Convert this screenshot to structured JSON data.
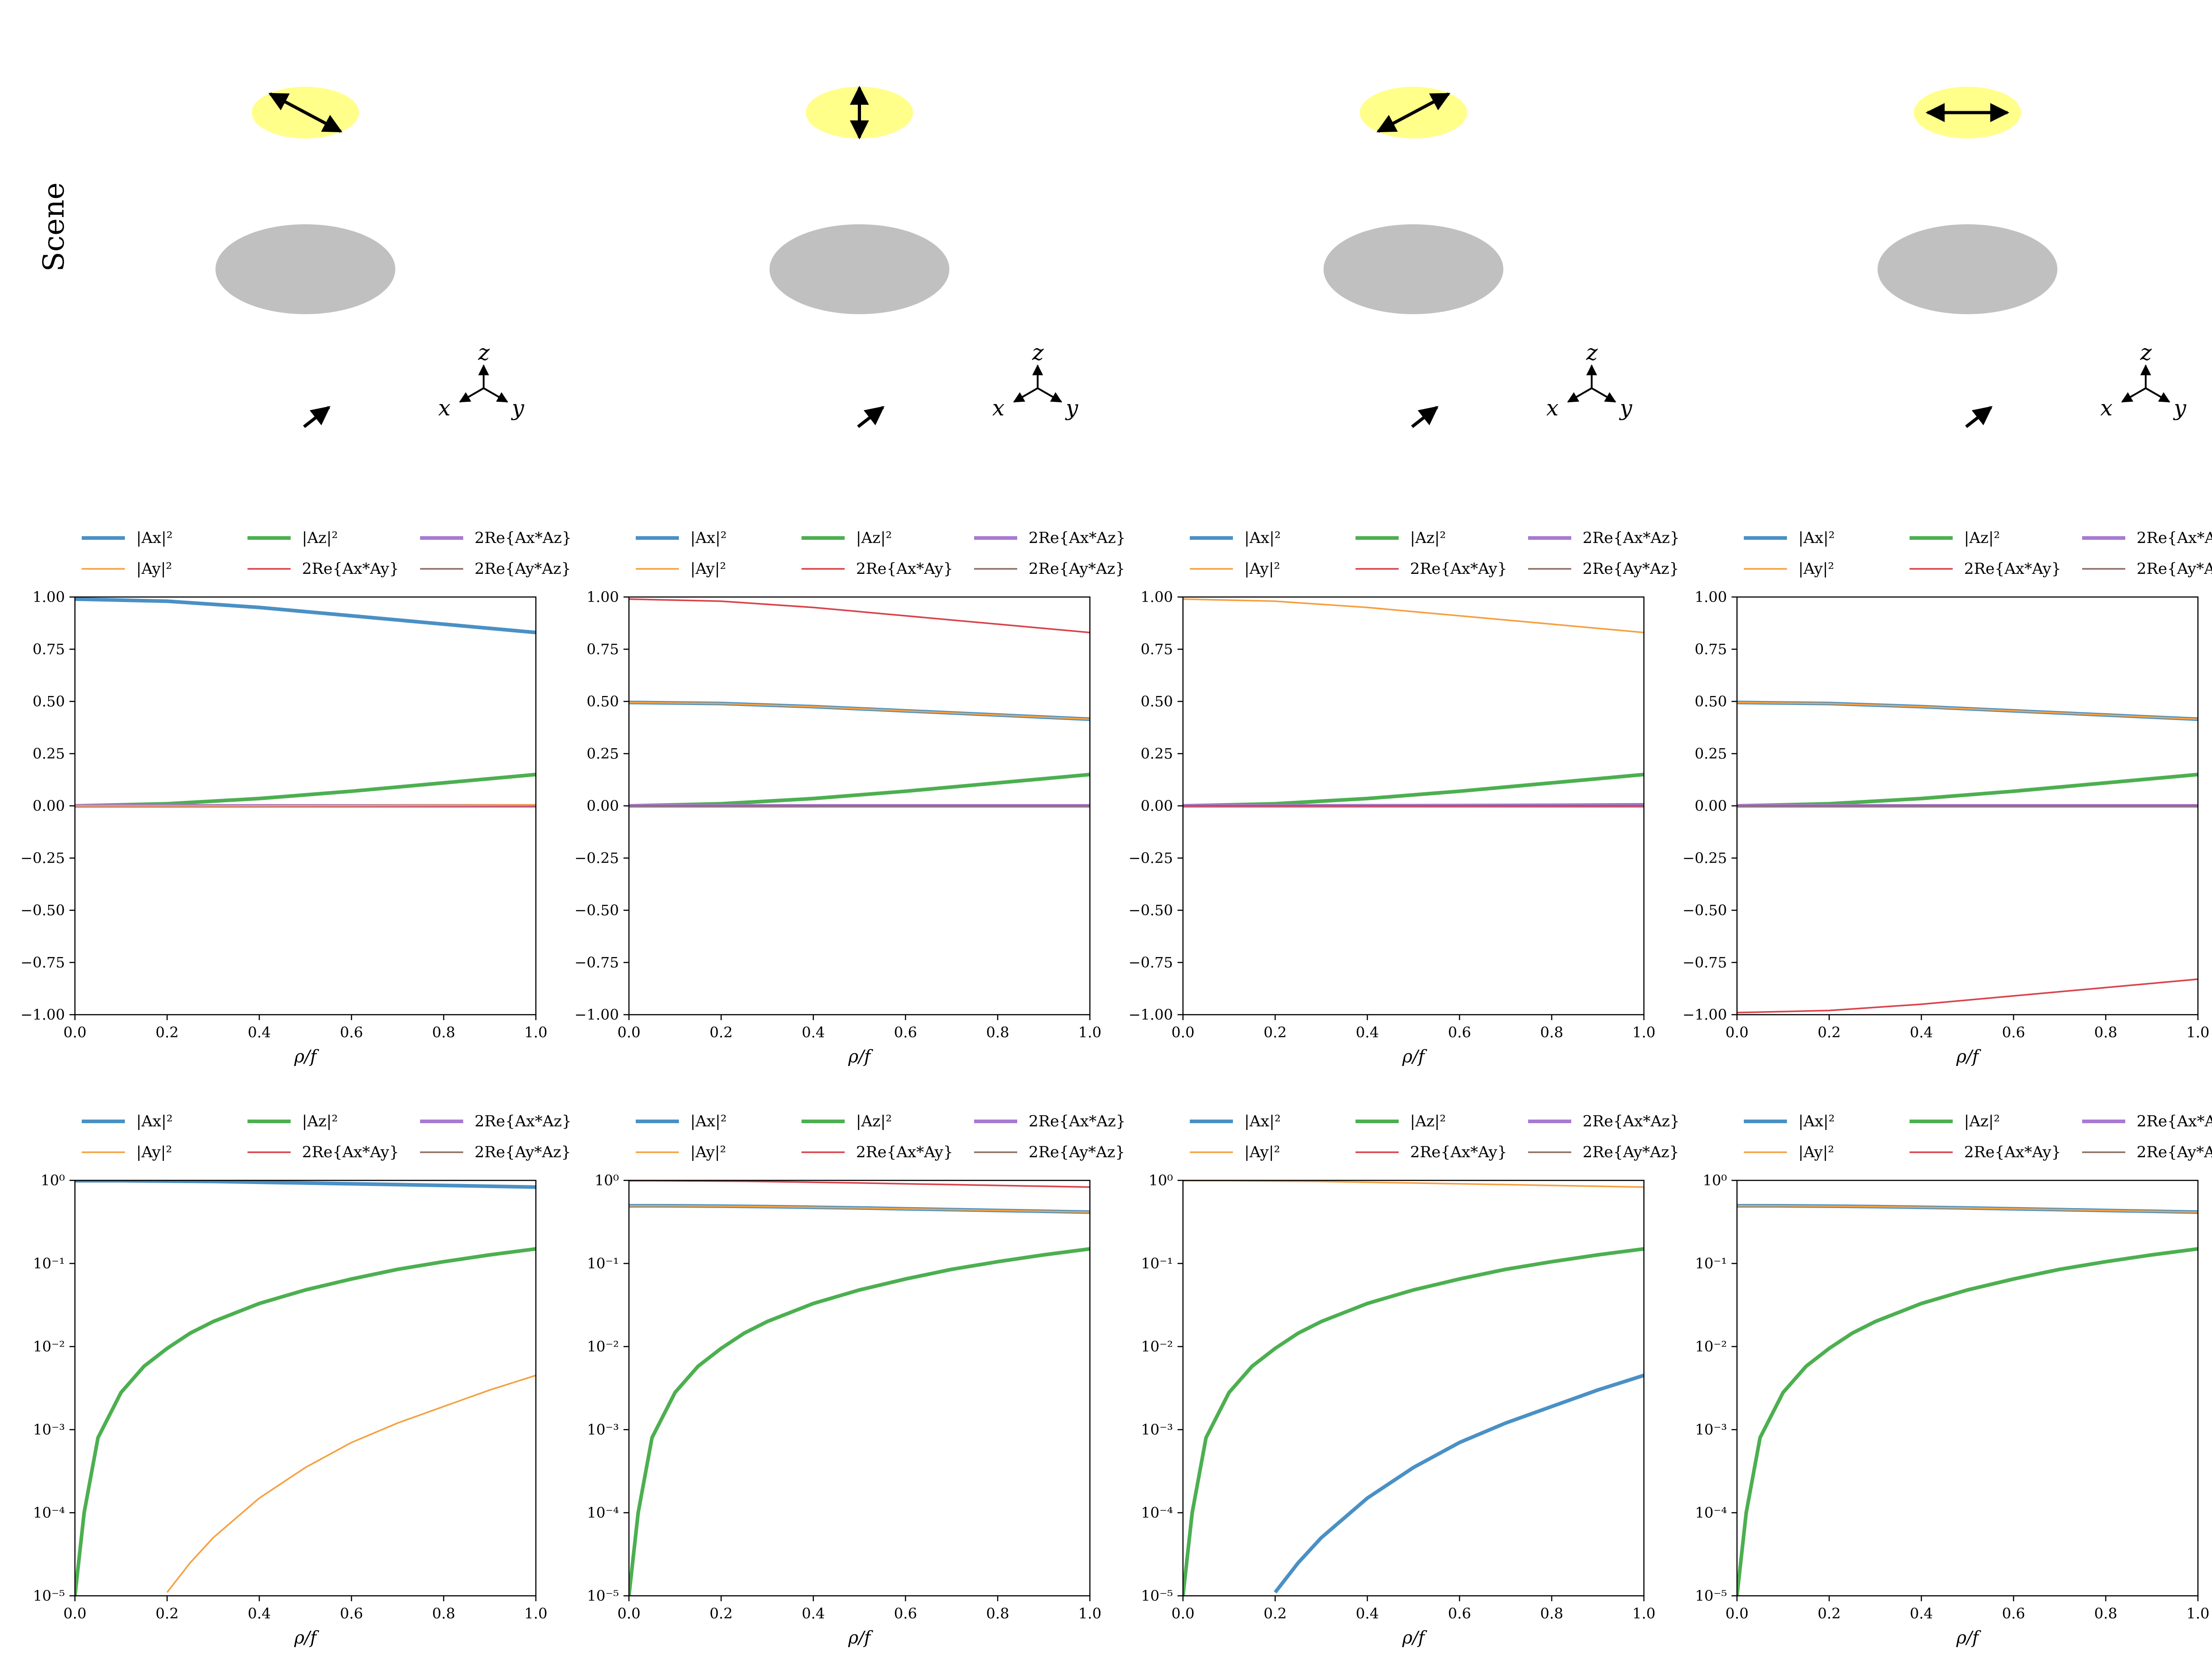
{
  "figure": {
    "row_label": "Scene",
    "colors": {
      "Ax2": "#4a90c4",
      "Ay2": "#f5a040",
      "Az2": "#4caf50",
      "ReAxAy": "#d9424a",
      "ReAxAz": "#a77ad1",
      "ReAyAz": "#8e6e62",
      "source": "#ffff8a",
      "lens": "#c0c0c0"
    },
    "legend": [
      {
        "key": "Ax2",
        "label": "|Ax|²",
        "thick": true
      },
      {
        "key": "Az2",
        "label": "|Az|²",
        "thick": true
      },
      {
        "key": "ReAxAz",
        "label": "2Re{Ax*Az}",
        "thick": true
      },
      {
        "key": "Ay2",
        "label": "|Ay|²",
        "thick": false
      },
      {
        "key": "ReAxAy",
        "label": "2Re{Ax*Ay}",
        "thick": false
      },
      {
        "key": "ReAyAz",
        "label": "2Re{Ay*Az}",
        "thick": false
      }
    ],
    "triad_labels": {
      "x": "x",
      "y": "y",
      "z": "z"
    },
    "scenes": [
      {
        "polarization": "diagonal-positive"
      },
      {
        "polarization": "vertical"
      },
      {
        "polarization": "diagonal-negative"
      },
      {
        "polarization": "horizontal"
      }
    ]
  },
  "chart_data": [
    {
      "type": "line",
      "row": "linear",
      "panel": 1,
      "xlabel": "ρ/f",
      "xlim": [
        0,
        1
      ],
      "ylim": [
        -1,
        1
      ],
      "xticks": [
        "0.0",
        "0.2",
        "0.4",
        "0.6",
        "0.8",
        "1.0"
      ],
      "yticks": [
        "1.00",
        "0.75",
        "0.50",
        "0.25",
        "0.00",
        "−0.25",
        "−0.50",
        "−0.75",
        "−1.00"
      ],
      "x": [
        0,
        0.2,
        0.4,
        0.6,
        0.8,
        1.0
      ],
      "series": [
        {
          "name": "|Ax|²",
          "key": "Ax2",
          "values": [
            0.99,
            0.98,
            0.95,
            0.91,
            0.87,
            0.83
          ]
        },
        {
          "name": "|Ay|²",
          "key": "Ay2",
          "values": [
            0,
            0.0001,
            0.0004,
            0.0013,
            0.0026,
            0.0045
          ]
        },
        {
          "name": "|Az|²",
          "key": "Az2",
          "values": [
            0,
            0.01,
            0.035,
            0.07,
            0.11,
            0.15
          ]
        },
        {
          "name": "2Re{Ax*Ay}",
          "key": "ReAxAy",
          "values": [
            0,
            0,
            0,
            0,
            0,
            0
          ]
        },
        {
          "name": "2Re{Ax*Az}",
          "key": "ReAxAz",
          "values": [
            0,
            0,
            0,
            0,
            0,
            0
          ]
        },
        {
          "name": "2Re{Ay*Az}",
          "key": "ReAyAz",
          "values": [
            0,
            0,
            0,
            0,
            0,
            0
          ]
        }
      ]
    },
    {
      "type": "line",
      "row": "linear",
      "panel": 2,
      "xlabel": "ρ/f",
      "xlim": [
        0,
        1
      ],
      "ylim": [
        -1,
        1
      ],
      "xticks": [
        "0.0",
        "0.2",
        "0.4",
        "0.6",
        "0.8",
        "1.0"
      ],
      "yticks": [
        "1.00",
        "0.75",
        "0.50",
        "0.25",
        "0.00",
        "−0.25",
        "−0.50",
        "−0.75",
        "−1.00"
      ],
      "x": [
        0,
        0.2,
        0.4,
        0.6,
        0.8,
        1.0
      ],
      "series": [
        {
          "name": "|Ax|²",
          "key": "Ax2",
          "values": [
            0.495,
            0.49,
            0.475,
            0.455,
            0.435,
            0.415
          ]
        },
        {
          "name": "|Ay|²",
          "key": "Ay2",
          "values": [
            0.495,
            0.49,
            0.475,
            0.455,
            0.435,
            0.415
          ]
        },
        {
          "name": "|Az|²",
          "key": "Az2",
          "values": [
            0,
            0.01,
            0.035,
            0.07,
            0.11,
            0.15
          ]
        },
        {
          "name": "2Re{Ax*Ay}",
          "key": "ReAxAy",
          "values": [
            0.99,
            0.98,
            0.95,
            0.91,
            0.87,
            0.83
          ]
        },
        {
          "name": "2Re{Ax*Az}",
          "key": "ReAxAz",
          "values": [
            0,
            0,
            0,
            0,
            0,
            0
          ]
        },
        {
          "name": "2Re{Ay*Az}",
          "key": "ReAyAz",
          "values": [
            0,
            0,
            0,
            0,
            0,
            0
          ]
        }
      ]
    },
    {
      "type": "line",
      "row": "linear",
      "panel": 3,
      "xlabel": "ρ/f",
      "xlim": [
        0,
        1
      ],
      "ylim": [
        -1,
        1
      ],
      "xticks": [
        "0.0",
        "0.2",
        "0.4",
        "0.6",
        "0.8",
        "1.0"
      ],
      "yticks": [
        "1.00",
        "0.75",
        "0.50",
        "0.25",
        "0.00",
        "−0.25",
        "−0.50",
        "−0.75",
        "−1.00"
      ],
      "x": [
        0,
        0.2,
        0.4,
        0.6,
        0.8,
        1.0
      ],
      "series": [
        {
          "name": "|Ax|²",
          "key": "Ax2",
          "values": [
            0,
            0.0001,
            0.0004,
            0.0013,
            0.0026,
            0.0045
          ]
        },
        {
          "name": "|Ay|²",
          "key": "Ay2",
          "values": [
            0.99,
            0.98,
            0.95,
            0.91,
            0.87,
            0.83
          ]
        },
        {
          "name": "|Az|²",
          "key": "Az2",
          "values": [
            0,
            0.01,
            0.035,
            0.07,
            0.11,
            0.15
          ]
        },
        {
          "name": "2Re{Ax*Ay}",
          "key": "ReAxAy",
          "values": [
            0,
            0,
            0,
            0,
            0,
            0
          ]
        },
        {
          "name": "2Re{Ax*Az}",
          "key": "ReAxAz",
          "values": [
            0,
            0,
            0,
            0,
            0,
            0
          ]
        },
        {
          "name": "2Re{Ay*Az}",
          "key": "ReAyAz",
          "values": [
            0,
            0,
            0,
            0,
            0,
            0
          ]
        }
      ]
    },
    {
      "type": "line",
      "row": "linear",
      "panel": 4,
      "xlabel": "ρ/f",
      "xlim": [
        0,
        1
      ],
      "ylim": [
        -1,
        1
      ],
      "xticks": [
        "0.0",
        "0.2",
        "0.4",
        "0.6",
        "0.8",
        "1.0"
      ],
      "yticks": [
        "1.00",
        "0.75",
        "0.50",
        "0.25",
        "0.00",
        "−0.25",
        "−0.50",
        "−0.75",
        "−1.00"
      ],
      "x": [
        0,
        0.2,
        0.4,
        0.6,
        0.8,
        1.0
      ],
      "series": [
        {
          "name": "|Ax|²",
          "key": "Ax2",
          "values": [
            0.495,
            0.49,
            0.475,
            0.455,
            0.435,
            0.415
          ]
        },
        {
          "name": "|Ay|²",
          "key": "Ay2",
          "values": [
            0.495,
            0.49,
            0.475,
            0.455,
            0.435,
            0.415
          ]
        },
        {
          "name": "|Az|²",
          "key": "Az2",
          "values": [
            0,
            0.01,
            0.035,
            0.07,
            0.11,
            0.15
          ]
        },
        {
          "name": "2Re{Ax*Ay}",
          "key": "ReAxAy",
          "values": [
            -0.99,
            -0.98,
            -0.95,
            -0.91,
            -0.87,
            -0.83
          ]
        },
        {
          "name": "2Re{Ax*Az}",
          "key": "ReAxAz",
          "values": [
            0,
            0,
            0,
            0,
            0,
            0
          ]
        },
        {
          "name": "2Re{Ay*Az}",
          "key": "ReAyAz",
          "values": [
            0,
            0,
            0,
            0,
            0,
            0
          ]
        }
      ]
    },
    {
      "type": "line",
      "row": "log",
      "panel": 1,
      "xlabel": "ρ/f",
      "xlim": [
        0,
        1
      ],
      "ylim": [
        1e-05,
        1
      ],
      "yscale": "log",
      "xticks": [
        "0.0",
        "0.2",
        "0.4",
        "0.6",
        "0.8",
        "1.0"
      ],
      "yticks": [
        "10⁰",
        "10⁻¹",
        "10⁻²",
        "10⁻³",
        "10⁻⁴",
        "10⁻⁵"
      ],
      "x": [
        0,
        0.02,
        0.05,
        0.1,
        0.15,
        0.2,
        0.25,
        0.3,
        0.4,
        0.5,
        0.6,
        0.7,
        0.8,
        0.9,
        1.0
      ],
      "series": [
        {
          "name": "|Ax|²",
          "key": "Ax2",
          "values": [
            0.99,
            0.99,
            0.99,
            0.99,
            0.985,
            0.98,
            0.975,
            0.97,
            0.95,
            0.93,
            0.91,
            0.89,
            0.87,
            0.85,
            0.83
          ]
        },
        {
          "name": "|Ay|²",
          "key": "Ay2",
          "values": [
            null,
            null,
            null,
            null,
            null,
            1.1e-05,
            2.5e-05,
            5e-05,
            0.00015,
            0.00035,
            0.0007,
            0.0012,
            0.0019,
            0.003,
            0.0045
          ]
        },
        {
          "name": "|Az|²",
          "key": "Az2",
          "values": [
            1e-05,
            0.0001,
            0.0008,
            0.0028,
            0.0058,
            0.0095,
            0.0145,
            0.02,
            0.033,
            0.048,
            0.065,
            0.085,
            0.105,
            0.127,
            0.15
          ]
        }
      ]
    },
    {
      "type": "line",
      "row": "log",
      "panel": 2,
      "xlabel": "ρ/f",
      "xlim": [
        0,
        1
      ],
      "ylim": [
        1e-05,
        1
      ],
      "yscale": "log",
      "xticks": [
        "0.0",
        "0.2",
        "0.4",
        "0.6",
        "0.8",
        "1.0"
      ],
      "yticks": [
        "10⁰",
        "10⁻¹",
        "10⁻²",
        "10⁻³",
        "10⁻⁴",
        "10⁻⁵"
      ],
      "x": [
        0,
        0.02,
        0.05,
        0.1,
        0.15,
        0.2,
        0.25,
        0.3,
        0.4,
        0.5,
        0.6,
        0.7,
        0.8,
        0.9,
        1.0
      ],
      "series": [
        {
          "name": "|Ax|²",
          "key": "Ax2",
          "values": [
            0.495,
            0.495,
            0.495,
            0.494,
            0.492,
            0.49,
            0.487,
            0.484,
            0.475,
            0.466,
            0.455,
            0.445,
            0.435,
            0.425,
            0.415
          ]
        },
        {
          "name": "|Ay|²",
          "key": "Ay2",
          "values": [
            0.495,
            0.495,
            0.495,
            0.494,
            0.492,
            0.49,
            0.487,
            0.484,
            0.475,
            0.466,
            0.455,
            0.445,
            0.435,
            0.425,
            0.415
          ]
        },
        {
          "name": "|Az|²",
          "key": "Az2",
          "values": [
            1e-05,
            0.0001,
            0.0008,
            0.0028,
            0.0058,
            0.0095,
            0.0145,
            0.02,
            0.033,
            0.048,
            0.065,
            0.085,
            0.105,
            0.127,
            0.15
          ]
        },
        {
          "name": "2Re{Ax*Ay}",
          "key": "ReAxAy",
          "values": [
            0.99,
            0.99,
            0.99,
            0.988,
            0.984,
            0.98,
            0.975,
            0.968,
            0.95,
            0.932,
            0.91,
            0.89,
            0.87,
            0.85,
            0.83
          ]
        }
      ]
    },
    {
      "type": "line",
      "row": "log",
      "panel": 3,
      "xlabel": "ρ/f",
      "xlim": [
        0,
        1
      ],
      "ylim": [
        1e-05,
        1
      ],
      "yscale": "log",
      "xticks": [
        "0.0",
        "0.2",
        "0.4",
        "0.6",
        "0.8",
        "1.0"
      ],
      "yticks": [
        "10⁰",
        "10⁻¹",
        "10⁻²",
        "10⁻³",
        "10⁻⁴",
        "10⁻⁵"
      ],
      "x": [
        0,
        0.02,
        0.05,
        0.1,
        0.15,
        0.2,
        0.25,
        0.3,
        0.4,
        0.5,
        0.6,
        0.7,
        0.8,
        0.9,
        1.0
      ],
      "series": [
        {
          "name": "|Ax|²",
          "key": "Ax2",
          "values": [
            null,
            null,
            null,
            null,
            null,
            1.1e-05,
            2.5e-05,
            5e-05,
            0.00015,
            0.00035,
            0.0007,
            0.0012,
            0.0019,
            0.003,
            0.0045
          ]
        },
        {
          "name": "|Ay|²",
          "key": "Ay2",
          "values": [
            0.99,
            0.99,
            0.99,
            0.99,
            0.985,
            0.98,
            0.975,
            0.97,
            0.95,
            0.93,
            0.91,
            0.89,
            0.87,
            0.85,
            0.83
          ]
        },
        {
          "name": "|Az|²",
          "key": "Az2",
          "values": [
            1e-05,
            0.0001,
            0.0008,
            0.0028,
            0.0058,
            0.0095,
            0.0145,
            0.02,
            0.033,
            0.048,
            0.065,
            0.085,
            0.105,
            0.127,
            0.15
          ]
        }
      ]
    },
    {
      "type": "line",
      "row": "log",
      "panel": 4,
      "xlabel": "ρ/f",
      "xlim": [
        0,
        1
      ],
      "ylim": [
        1e-05,
        1
      ],
      "yscale": "log",
      "xticks": [
        "0.0",
        "0.2",
        "0.4",
        "0.6",
        "0.8",
        "1.0"
      ],
      "yticks": [
        "10⁰",
        "10⁻¹",
        "10⁻²",
        "10⁻³",
        "10⁻⁴",
        "10⁻⁵"
      ],
      "x": [
        0,
        0.02,
        0.05,
        0.1,
        0.15,
        0.2,
        0.25,
        0.3,
        0.4,
        0.5,
        0.6,
        0.7,
        0.8,
        0.9,
        1.0
      ],
      "series": [
        {
          "name": "|Ax|²",
          "key": "Ax2",
          "values": [
            0.495,
            0.495,
            0.495,
            0.494,
            0.492,
            0.49,
            0.487,
            0.484,
            0.475,
            0.466,
            0.455,
            0.445,
            0.435,
            0.425,
            0.415
          ]
        },
        {
          "name": "|Ay|²",
          "key": "Ay2",
          "values": [
            0.495,
            0.495,
            0.495,
            0.494,
            0.492,
            0.49,
            0.487,
            0.484,
            0.475,
            0.466,
            0.455,
            0.445,
            0.435,
            0.425,
            0.415
          ]
        },
        {
          "name": "|Az|²",
          "key": "Az2",
          "values": [
            1e-05,
            0.0001,
            0.0008,
            0.0028,
            0.0058,
            0.0095,
            0.0145,
            0.02,
            0.033,
            0.048,
            0.065,
            0.085,
            0.105,
            0.127,
            0.15
          ]
        }
      ]
    }
  ]
}
